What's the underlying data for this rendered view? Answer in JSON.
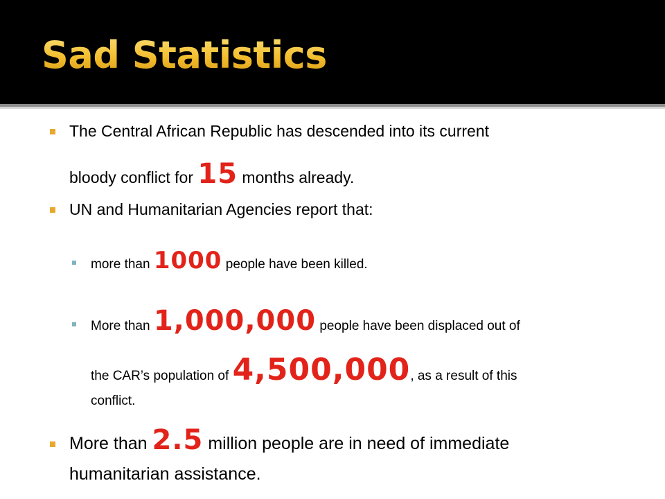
{
  "slide": {
    "title": "Sad Statistics",
    "accent_color": "#f2c23a",
    "highlight_color": "#e2231a",
    "bullet_marker_color": "#e7a92a",
    "sub_bullet_marker_color": "#7fb3c0"
  },
  "bullets": {
    "b1": {
      "line1": "The Central African Republic has descended into its current",
      "line2_pre": "bloody conflict for ",
      "number": "15",
      "line2_post": " months already."
    },
    "b2": {
      "text": "UN and  Humanitarian Agencies report that:"
    },
    "b2a": {
      "pre": "more than ",
      "number": "1000",
      "post": " people have been killed."
    },
    "b2b": {
      "pre": "More than ",
      "number": "1,000,000",
      "post": " people have been displaced out of",
      "line2_pre": "the CAR’s population of ",
      "number2": "4,500,000",
      "line2_post": ", as a result of this",
      "line3": "conflict."
    },
    "b3": {
      "pre": "More than ",
      "number": "2.5",
      "post": " million people are in need of immediate",
      "line2": "humanitarian assistance."
    }
  }
}
